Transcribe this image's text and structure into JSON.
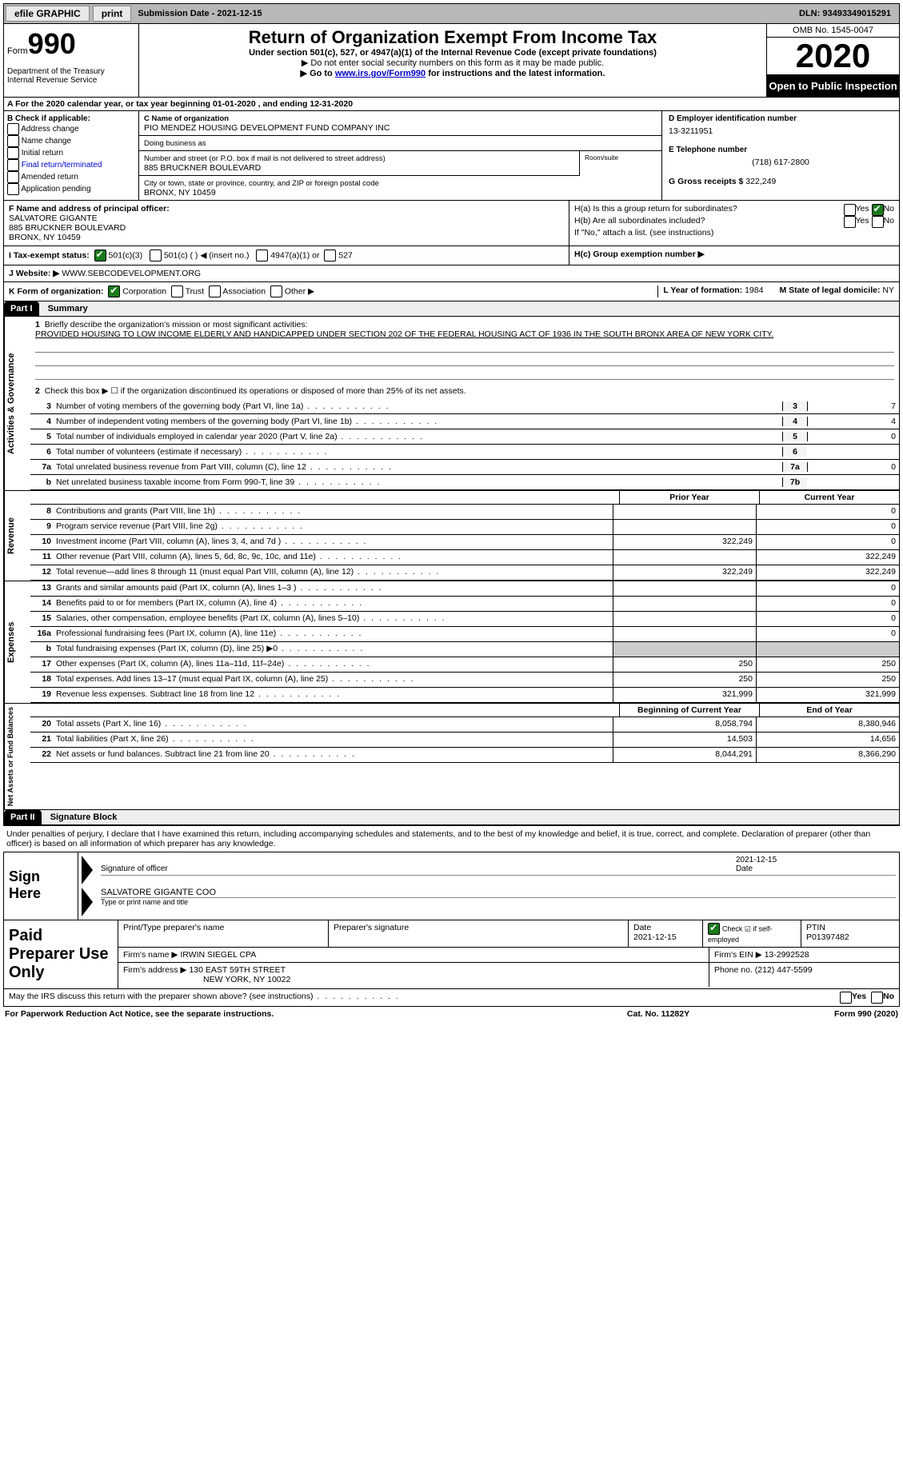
{
  "topbar": {
    "efile": "efile GRAPHIC",
    "print": "print",
    "submission_label": "Submission Date - ",
    "submission_date": "2021-12-15",
    "dln_label": "DLN: ",
    "dln": "93493349015291"
  },
  "header": {
    "form_prefix": "Form",
    "form_number": "990",
    "dept": "Department of the Treasury\nInternal Revenue Service",
    "title": "Return of Organization Exempt From Income Tax",
    "subtitle": "Under section 501(c), 527, or 4947(a)(1) of the Internal Revenue Code (except private foundations)",
    "note1": "▶ Do not enter social security numbers on this form as it may be made public.",
    "note2_pre": "▶ Go to ",
    "note2_link": "www.irs.gov/Form990",
    "note2_post": " for instructions and the latest information.",
    "omb": "OMB No. 1545-0047",
    "year": "2020",
    "open": "Open to Public Inspection"
  },
  "period": {
    "text_a": "A For the 2020 calendar year, or tax year beginning ",
    "begin": "01-01-2020",
    "mid": " , and ending ",
    "end": "12-31-2020"
  },
  "section_b": {
    "label": "B Check if applicable:",
    "opts": [
      "Address change",
      "Name change",
      "Initial return",
      "Final return/terminated",
      "Amended return",
      "Application pending"
    ]
  },
  "section_c": {
    "name_label": "C Name of organization",
    "name": "PIO MENDEZ HOUSING DEVELOPMENT FUND COMPANY INC",
    "dba_label": "Doing business as",
    "street_label": "Number and street (or P.O. box if mail is not delivered to street address)",
    "room_label": "Room/suite",
    "street": "885 BRUCKNER BOULEVARD",
    "city_label": "City or town, state or province, country, and ZIP or foreign postal code",
    "city": "BRONX, NY  10459"
  },
  "section_d": {
    "ein_label": "D Employer identification number",
    "ein": "13-3211951",
    "phone_label": "E Telephone number",
    "phone": "(718) 617-2800",
    "gross_label": "G Gross receipts $ ",
    "gross": "322,249"
  },
  "section_f": {
    "label": "F Name and address of principal officer:",
    "name": "SALVATORE GIGANTE",
    "street": "885 BRUCKNER BOULEVARD",
    "city": "BRONX, NY  10459"
  },
  "section_h": {
    "ha_label": "H(a)  Is this a group return for subordinates?",
    "hb_label": "H(b)  Are all subordinates included?",
    "hb_note": "If \"No,\" attach a list. (see instructions)",
    "hc_label": "H(c)  Group exemption number ▶",
    "yes": "Yes",
    "no": "No"
  },
  "section_i": {
    "label": "I   Tax-exempt status:",
    "o1": "501(c)(3)",
    "o2": "501(c) (  ) ◀ (insert no.)",
    "o3": "4947(a)(1) or",
    "o4": "527"
  },
  "section_j": {
    "label": "J   Website: ▶ ",
    "value": "WWW.SEBCODEVELOPMENT.ORG"
  },
  "section_k": {
    "label": "K Form of organization:",
    "opts": [
      "Corporation",
      "Trust",
      "Association",
      "Other ▶"
    ],
    "l_label": "L Year of formation: ",
    "l_val": "1984",
    "m_label": "M State of legal domicile: ",
    "m_val": "NY"
  },
  "part1": {
    "header": "Part I",
    "title": "Summary",
    "q1": "Briefly describe the organization's mission or most significant activities:",
    "mission": "PROVIDED HOUSING TO LOW INCOME ELDERLY AND HANDICAPPED UNDER SECTION 202 OF THE FEDERAL HOUSING ACT OF 1936 IN THE SOUTH BRONX AREA OF NEW YORK CITY.",
    "q2": "Check this box ▶ ☐  if the organization discontinued its operations or disposed of more than 25% of its net assets.",
    "lines_gov": [
      {
        "n": "3",
        "d": "Number of voting members of the governing body (Part VI, line 1a)",
        "box": "3",
        "v": "7"
      },
      {
        "n": "4",
        "d": "Number of independent voting members of the governing body (Part VI, line 1b)",
        "box": "4",
        "v": "4"
      },
      {
        "n": "5",
        "d": "Total number of individuals employed in calendar year 2020 (Part V, line 2a)",
        "box": "5",
        "v": "0"
      },
      {
        "n": "6",
        "d": "Total number of volunteers (estimate if necessary)",
        "box": "6",
        "v": ""
      },
      {
        "n": "7a",
        "d": "Total unrelated business revenue from Part VIII, column (C), line 12",
        "box": "7a",
        "v": "0"
      },
      {
        "n": "b",
        "d": "Net unrelated business taxable income from Form 990-T, line 39",
        "box": "7b",
        "v": ""
      }
    ],
    "head_prior": "Prior Year",
    "head_current": "Current Year",
    "revenue": [
      {
        "n": "8",
        "d": "Contributions and grants (Part VIII, line 1h)",
        "p": "",
        "c": "0"
      },
      {
        "n": "9",
        "d": "Program service revenue (Part VIII, line 2g)",
        "p": "",
        "c": "0"
      },
      {
        "n": "10",
        "d": "Investment income (Part VIII, column (A), lines 3, 4, and 7d )",
        "p": "322,249",
        "c": "0"
      },
      {
        "n": "11",
        "d": "Other revenue (Part VIII, column (A), lines 5, 6d, 8c, 9c, 10c, and 11e)",
        "p": "",
        "c": "322,249"
      },
      {
        "n": "12",
        "d": "Total revenue—add lines 8 through 11 (must equal Part VIII, column (A), line 12)",
        "p": "322,249",
        "c": "322,249"
      }
    ],
    "expenses": [
      {
        "n": "13",
        "d": "Grants and similar amounts paid (Part IX, column (A), lines 1–3 )",
        "p": "",
        "c": "0"
      },
      {
        "n": "14",
        "d": "Benefits paid to or for members (Part IX, column (A), line 4)",
        "p": "",
        "c": "0"
      },
      {
        "n": "15",
        "d": "Salaries, other compensation, employee benefits (Part IX, column (A), lines 5–10)",
        "p": "",
        "c": "0"
      },
      {
        "n": "16a",
        "d": "Professional fundraising fees (Part IX, column (A), line 11e)",
        "p": "",
        "c": "0"
      },
      {
        "n": "b",
        "d": "Total fundraising expenses (Part IX, column (D), line 25) ▶0",
        "p": "shade",
        "c": "shade"
      },
      {
        "n": "17",
        "d": "Other expenses (Part IX, column (A), lines 11a–11d, 11f–24e)",
        "p": "250",
        "c": "250"
      },
      {
        "n": "18",
        "d": "Total expenses. Add lines 13–17 (must equal Part IX, column (A), line 25)",
        "p": "250",
        "c": "250"
      },
      {
        "n": "19",
        "d": "Revenue less expenses. Subtract line 18 from line 12",
        "p": "321,999",
        "c": "321,999"
      }
    ],
    "head_begin": "Beginning of Current Year",
    "head_end": "End of Year",
    "netassets": [
      {
        "n": "20",
        "d": "Total assets (Part X, line 16)",
        "p": "8,058,794",
        "c": "8,380,946"
      },
      {
        "n": "21",
        "d": "Total liabilities (Part X, line 26)",
        "p": "14,503",
        "c": "14,656"
      },
      {
        "n": "22",
        "d": "Net assets or fund balances. Subtract line 21 from line 20",
        "p": "8,044,291",
        "c": "8,366,290"
      }
    ],
    "side_gov": "Activities & Governance",
    "side_rev": "Revenue",
    "side_exp": "Expenses",
    "side_net": "Net Assets or Fund Balances"
  },
  "part2": {
    "header": "Part II",
    "title": "Signature Block",
    "intro": "Under penalties of perjury, I declare that I have examined this return, including accompanying schedules and statements, and to the best of my knowledge and belief, it is true, correct, and complete. Declaration of preparer (other than officer) is based on all information of which preparer has any knowledge.",
    "sign_here": "Sign Here",
    "sig_officer": "Signature of officer",
    "sig_date": "2021-12-15",
    "date_label": "Date",
    "sig_name": "SALVATORE GIGANTE COO",
    "type_label": "Type or print name and title",
    "paid": "Paid Preparer Use Only",
    "pp_name_label": "Print/Type preparer's name",
    "pp_sig_label": "Preparer's signature",
    "pp_date_label": "Date",
    "pp_date": "2021-12-15",
    "pp_check_label": "Check ☑ if self-employed",
    "ptin_label": "PTIN",
    "ptin": "P01397482",
    "firm_name_label": "Firm's name   ▶ ",
    "firm_name": "IRWIN SIEGEL CPA",
    "firm_ein_label": "Firm's EIN ▶ ",
    "firm_ein": "13-2992528",
    "firm_addr_label": "Firm's address ▶ ",
    "firm_addr": "130 EAST 59TH STREET",
    "firm_city": "NEW YORK, NY  10022",
    "firm_phone_label": "Phone no. ",
    "firm_phone": "(212) 447-5599",
    "discuss": "May the IRS discuss this return with the preparer shown above? (see instructions)"
  },
  "footer": {
    "left": "For Paperwork Reduction Act Notice, see the separate instructions.",
    "mid": "Cat. No. 11282Y",
    "right": "Form 990 (2020)"
  }
}
